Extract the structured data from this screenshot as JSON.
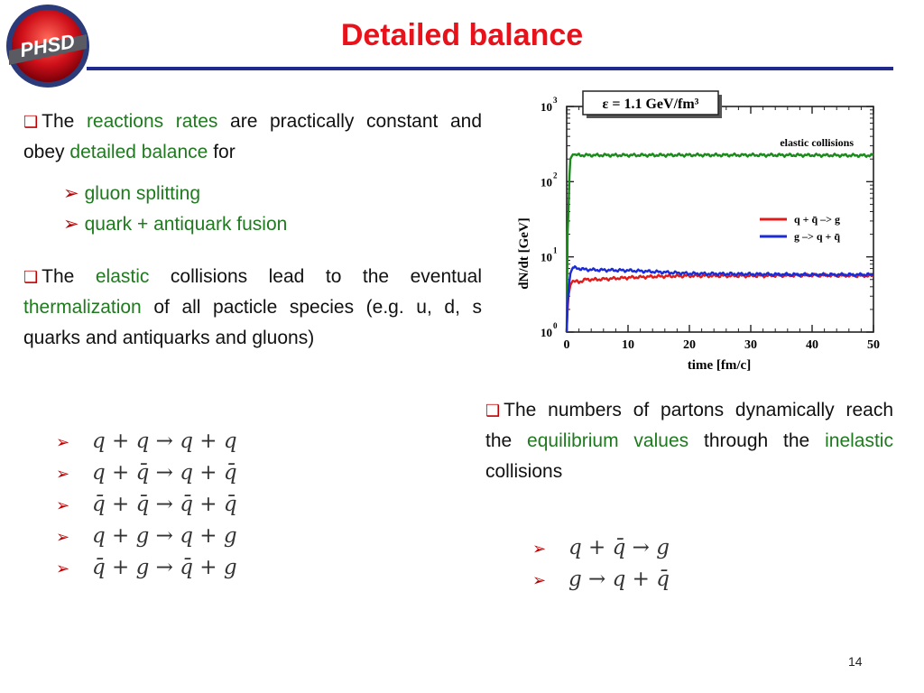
{
  "logo": {
    "text": "PHSD"
  },
  "title": "Detailed balance",
  "para1": {
    "t1": "The",
    "t2": "reactions rates",
    "t3": "are practically constant and obey",
    "t4": "detailed balance",
    "t5": "for"
  },
  "sub1": [
    "gluon splitting",
    "quark + antiquark fusion"
  ],
  "para2": {
    "t1": "The",
    "t2": "elastic",
    "t3": "collisions lead to the eventual",
    "t4": "thermalization",
    "t5": "of all pacticle species (e.g. u, d, s quarks and antiquarks and gluons)"
  },
  "para3": {
    "t1": "The numbers of partons dynamically reach the",
    "t2": "equilibrium values",
    "t3": "through the",
    "t4": "inelastic",
    "t5": "collisions"
  },
  "elastic_eqs": [
    "q + q → q + q",
    "q + q̄ → q + q̄",
    "q̄ + q̄ → q̄ + q̄",
    "q + g → q + g",
    "q̄ + g → q̄ + g"
  ],
  "inelastic_eqs": [
    "q + q̄ → g",
    "g → q + q̄"
  ],
  "page_number": "14",
  "colors": {
    "title": "#e8121a",
    "rule": "#1f2a8c",
    "highlight": "#1f7a1f",
    "bullet": "#c00000"
  },
  "chart_data": {
    "type": "line",
    "title": "ε = 1.1 GeV/fm³",
    "annotation": "elastic collisions",
    "xlabel": "time [fm/c]",
    "ylabel": "dN/dt [GeV]",
    "xlim": [
      0,
      50
    ],
    "ylim": [
      1,
      1000
    ],
    "yscale": "log",
    "x_ticks": [
      "0",
      "10",
      "20",
      "30",
      "40",
      "50"
    ],
    "y_ticks": [
      {
        "base": "10",
        "exp": "0"
      },
      {
        "base": "10",
        "exp": "1"
      },
      {
        "base": "10",
        "exp": "2"
      },
      {
        "base": "10",
        "exp": "3"
      }
    ],
    "legend_position": "middle-right",
    "series": [
      {
        "name": "",
        "color": "#1a8a1a",
        "x": [
          0,
          0.3,
          0.6,
          1,
          2,
          5,
          10,
          20,
          30,
          40,
          50
        ],
        "y": [
          1,
          40,
          200,
          230,
          225,
          225,
          225,
          226,
          226,
          225,
          223
        ]
      },
      {
        "name": "q + q̄ –> g",
        "color": "#e11b1b",
        "x": [
          0,
          0.3,
          0.6,
          1,
          2,
          3,
          5,
          10,
          15,
          20,
          30,
          40,
          50
        ],
        "y": [
          1,
          3,
          4.2,
          4.8,
          4.6,
          5.0,
          5.0,
          5.3,
          5.5,
          5.6,
          5.6,
          5.7,
          5.6
        ]
      },
      {
        "name": "g –> q + q̄",
        "color": "#1b2bd6",
        "x": [
          0,
          0.3,
          0.6,
          1,
          2,
          3,
          5,
          10,
          15,
          20,
          30,
          40,
          50
        ],
        "y": [
          1,
          3.5,
          6.0,
          7.2,
          7.0,
          6.8,
          6.7,
          6.6,
          6.3,
          6.0,
          5.9,
          5.8,
          5.8
        ]
      }
    ]
  }
}
